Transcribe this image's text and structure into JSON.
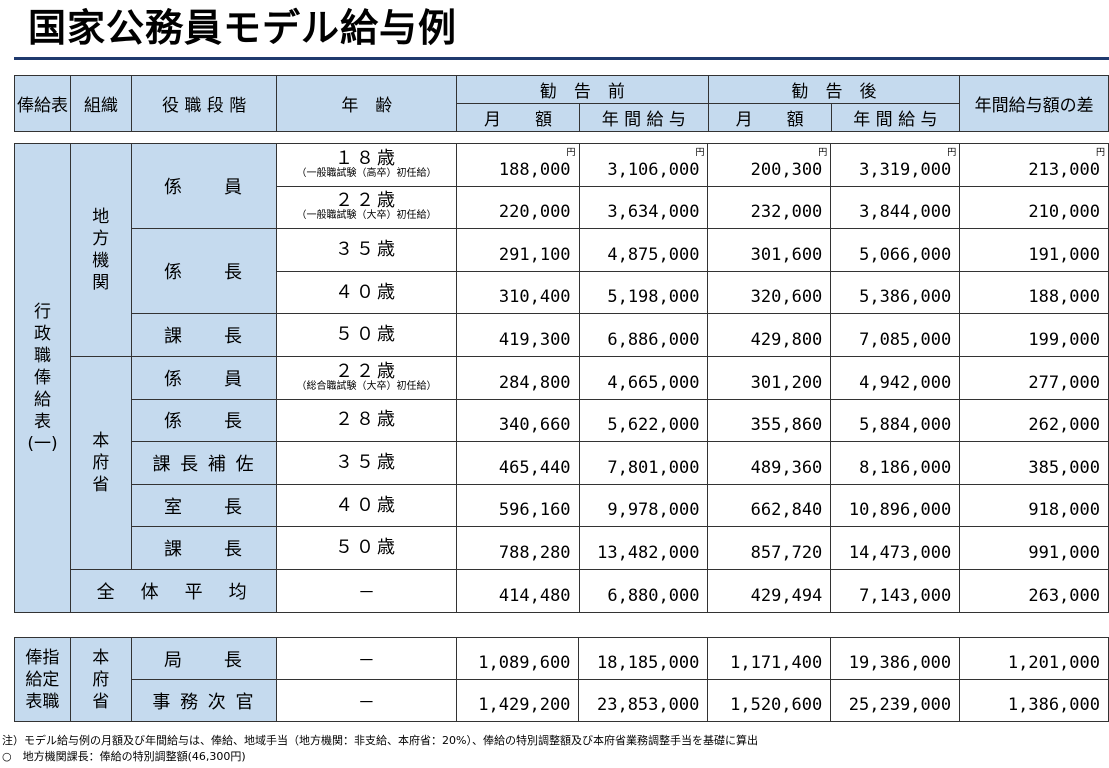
{
  "title": "国家公務員モデル給与例",
  "header": {
    "col_table": "俸給表",
    "col_org": "組織",
    "col_rank": "役 職 段 階",
    "col_age": "年　齢",
    "before": "勧　告　前",
    "after": "勧　告　後",
    "diff": "年間給与額の差",
    "monthly": "月　　額",
    "annual": "年 間 給 与"
  },
  "unit": "円",
  "group1": {
    "table_name": [
      "行",
      "政",
      "職",
      "俸",
      "給",
      "表",
      "(一)"
    ],
    "org_local": [
      "地",
      "方",
      "機",
      "関"
    ],
    "org_hq": [
      "本",
      "府",
      "省"
    ],
    "rows": [
      {
        "rank": "係　　員",
        "age": "１８歳",
        "note": "（一般職試験（高卒）初任給）",
        "m1": "188,000",
        "a1": "3,106,000",
        "m2": "200,300",
        "a2": "3,319,000",
        "d": "213,000"
      },
      {
        "rank": "",
        "age": "２２歳",
        "note": "（一般職試験（大卒）初任給）",
        "m1": "220,000",
        "a1": "3,634,000",
        "m2": "232,000",
        "a2": "3,844,000",
        "d": "210,000"
      },
      {
        "rank": "係　　長",
        "age": "３５歳",
        "note": "",
        "m1": "291,100",
        "a1": "4,875,000",
        "m2": "301,600",
        "a2": "5,066,000",
        "d": "191,000"
      },
      {
        "rank": "",
        "age": "４０歳",
        "note": "",
        "m1": "310,400",
        "a1": "5,198,000",
        "m2": "320,600",
        "a2": "5,386,000",
        "d": "188,000"
      },
      {
        "rank": "課　　長",
        "age": "５０歳",
        "note": "",
        "m1": "419,300",
        "a1": "6,886,000",
        "m2": "429,800",
        "a2": "7,085,000",
        "d": "199,000"
      },
      {
        "rank": "係　　員",
        "age": "２２歳",
        "note": "（総合職試験（大卒）初任給）",
        "m1": "284,800",
        "a1": "4,665,000",
        "m2": "301,200",
        "a2": "4,942,000",
        "d": "277,000"
      },
      {
        "rank": "係　　長",
        "age": "２８歳",
        "note": "",
        "m1": "340,660",
        "a1": "5,622,000",
        "m2": "355,860",
        "a2": "5,884,000",
        "d": "262,000"
      },
      {
        "rank": "課 長 補 佐",
        "age": "３５歳",
        "note": "",
        "m1": "465,440",
        "a1": "7,801,000",
        "m2": "489,360",
        "a2": "8,186,000",
        "d": "385,000"
      },
      {
        "rank": "室　　長",
        "age": "４０歳",
        "note": "",
        "m1": "596,160",
        "a1": "9,978,000",
        "m2": "662,840",
        "a2": "10,896,000",
        "d": "918,000"
      },
      {
        "rank": "課　　長",
        "age": "５０歳",
        "note": "",
        "m1": "788,280",
        "a1": "13,482,000",
        "m2": "857,720",
        "a2": "14,473,000",
        "d": "991,000"
      }
    ],
    "average": {
      "label": "全　体　平　均",
      "age": "－",
      "m1": "414,480",
      "a1": "6,880,000",
      "m2": "429,494",
      "a2": "7,143,000",
      "d": "263,000"
    }
  },
  "group2": {
    "table_name": [
      "俸指",
      "給定",
      "表職"
    ],
    "org": [
      "本",
      "府",
      "省"
    ],
    "rows": [
      {
        "rank": "局　　長",
        "age": "－",
        "m1": "1,089,600",
        "a1": "18,185,000",
        "m2": "1,171,400",
        "a2": "19,386,000",
        "d": "1,201,000"
      },
      {
        "rank": "事 務 次 官",
        "age": "－",
        "m1": "1,429,200",
        "a1": "23,853,000",
        "m2": "1,520,600",
        "a2": "25,239,000",
        "d": "1,386,000"
      }
    ]
  },
  "notes": [
    "注）モデル給与例の月額及び年間給与は、俸給、地域手当（地方機関：非支給、本府省：20%）、俸給の特別調整額及び本府省業務調整手当を基礎に算出",
    "○　地方機関課長：俸給の特別調整額(46,300円)"
  ]
}
